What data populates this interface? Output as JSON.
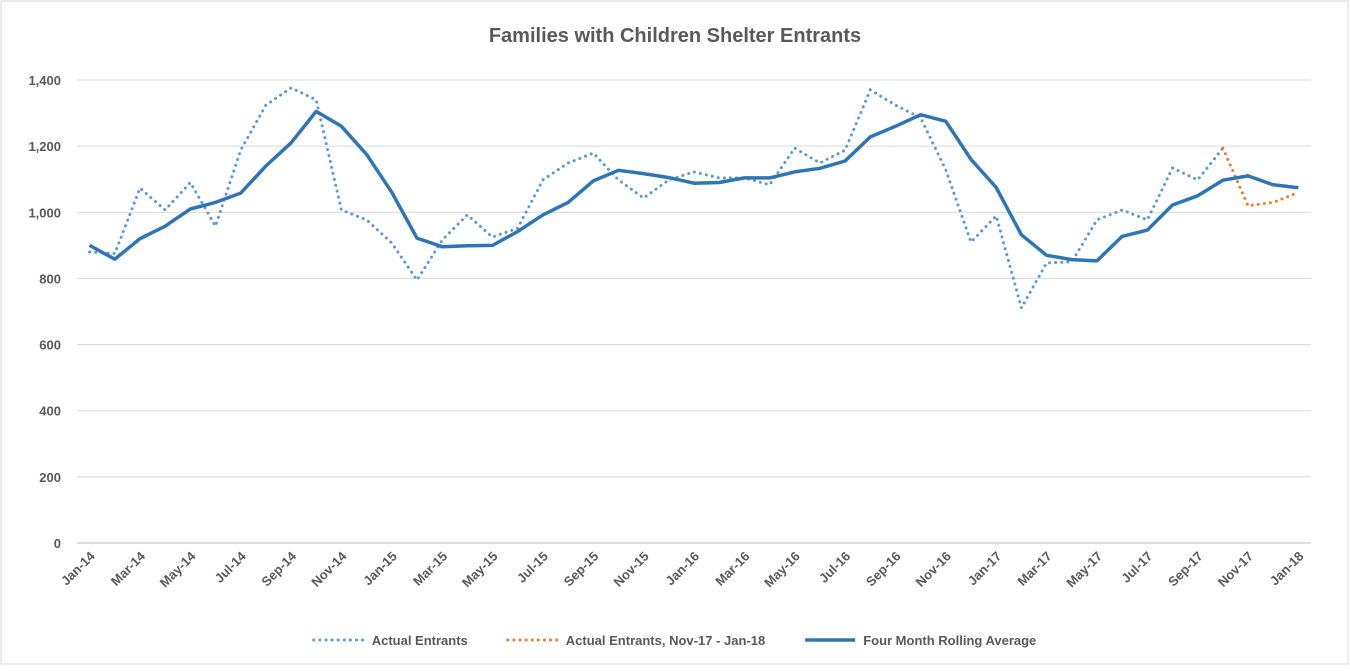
{
  "chart_data": {
    "type": "line",
    "title": "Families with Children Shelter Entrants",
    "categories": [
      "Jan-14",
      null,
      "Mar-14",
      null,
      "May-14",
      null,
      "Jul-14",
      null,
      "Sep-14",
      null,
      "Nov-14",
      null,
      "Jan-15",
      null,
      "Mar-15",
      null,
      "May-15",
      null,
      "Jul-15",
      null,
      "Sep-15",
      null,
      "Nov-15",
      null,
      "Jan-16",
      null,
      "Mar-16",
      null,
      "May-16",
      null,
      "Jul-16",
      null,
      "Sep-16",
      null,
      "Nov-16",
      null,
      "Jan-17",
      null,
      "Mar-17",
      null,
      "May-17",
      null,
      "Jul-17",
      null,
      "Sep-17",
      null,
      "Nov-17",
      null,
      "Jan-18"
    ],
    "series": [
      {
        "name": "Actual Entrants",
        "color": "#5b9bd5",
        "style": "dotted",
        "values": [
          880,
          875,
          1073,
          1007,
          1090,
          958,
          1188,
          1324,
          1376,
          1340,
          1007,
          977,
          907,
          795,
          916,
          992,
          925,
          952,
          1098,
          1149,
          1179,
          1098,
          1043,
          1098,
          1122,
          1104,
          1104,
          1083,
          1194,
          1149,
          1188,
          1370,
          1324,
          1285,
          1128,
          910,
          989,
          711,
          847,
          850,
          977,
          1007,
          977,
          1134,
          1098,
          1194,
          null,
          null,
          null
        ]
      },
      {
        "name": "Actual Entrants, Nov-17 - Jan-18",
        "color": "#ed7d31",
        "style": "dotted",
        "values": [
          null,
          null,
          null,
          null,
          null,
          null,
          null,
          null,
          null,
          null,
          null,
          null,
          null,
          null,
          null,
          null,
          null,
          null,
          null,
          null,
          null,
          null,
          null,
          null,
          null,
          null,
          null,
          null,
          null,
          null,
          null,
          null,
          null,
          null,
          null,
          null,
          null,
          null,
          null,
          null,
          null,
          null,
          null,
          null,
          null,
          1194,
          1020,
          1030,
          1060
        ]
      },
      {
        "name": "Four Month Rolling Average",
        "color": "#2e75b6",
        "style": "solid",
        "values": [
          900,
          858,
          920,
          958,
          1010,
          1030,
          1058,
          1140,
          1210,
          1305,
          1260,
          1175,
          1060,
          922,
          896,
          899,
          900,
          942,
          992,
          1030,
          1095,
          1127,
          1117,
          1105,
          1088,
          1090,
          1104,
          1104,
          1122,
          1133,
          1155,
          1228,
          1260,
          1295,
          1275,
          1160,
          1075,
          932,
          870,
          857,
          853,
          927,
          946,
          1022,
          1050,
          1097,
          1110,
          1083,
          1074
        ]
      }
    ],
    "ylim": [
      0,
      1400
    ],
    "yticks": [
      0,
      200,
      400,
      600,
      800,
      {
        "value": 1000,
        "label": "1,000"
      },
      {
        "value": 1200,
        "label": "1,200"
      },
      {
        "value": 1400,
        "label": "1,400"
      }
    ],
    "grid": true,
    "legend": "bottom"
  }
}
